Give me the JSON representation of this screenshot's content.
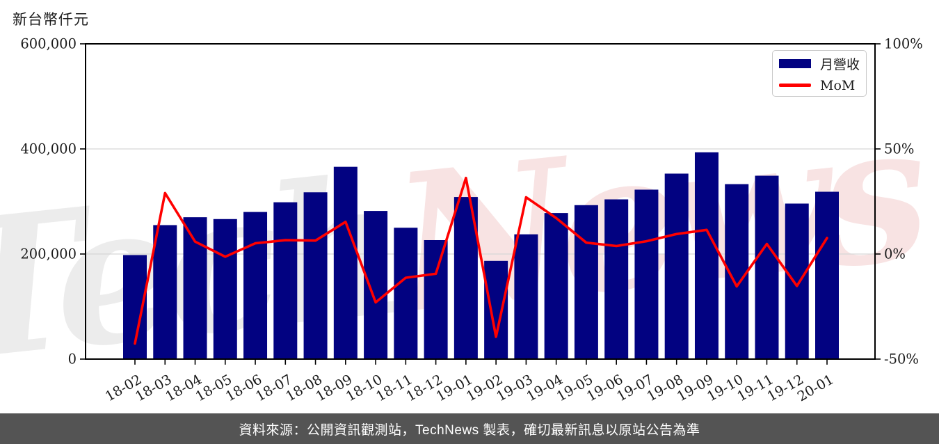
{
  "title": {
    "text": "新台幣仟元"
  },
  "legend": {
    "items": [
      {
        "label": "月營收",
        "type": "bar",
        "color": "#020281"
      },
      {
        "label": "MoM",
        "type": "line",
        "color": "#ff0000"
      }
    ]
  },
  "watermark": {
    "parts": [
      {
        "text": "Tech",
        "color": "#ececec"
      },
      {
        "text": "News",
        "color": "#f8e3e3"
      }
    ]
  },
  "footer": {
    "text": "資料來源：公開資訊觀測站，TechNews 製表，確切最新訊息以原站公告為準",
    "background": "#545454",
    "text_color": "#ffffff"
  },
  "chart_data": {
    "type": "bar",
    "title": "新台幣仟元",
    "categories": [
      "18-02",
      "18-03",
      "18-04",
      "18-05",
      "18-06",
      "18-07",
      "18-08",
      "18-09",
      "18-10",
      "18-11",
      "18-12",
      "19-01",
      "19-02",
      "19-03",
      "19-04",
      "19-05",
      "19-06",
      "19-07",
      "19-08",
      "19-09",
      "19-10",
      "19-11",
      "19-12",
      "20-01"
    ],
    "series": [
      {
        "name": "月營收",
        "type": "bar",
        "axis": "left",
        "color": "#020281",
        "values": [
          198000,
          255000,
          270000,
          266500,
          280000,
          298500,
          317500,
          366000,
          282000,
          250000,
          226500,
          308500,
          187000,
          237500,
          278000,
          293000,
          304000,
          322500,
          353000,
          393500,
          333000,
          349000,
          296000,
          318500
        ]
      },
      {
        "name": "MoM",
        "type": "line",
        "axis": "right",
        "color": "#ff0000",
        "unit": "%",
        "values": [
          -42.6,
          29.0,
          5.9,
          -1.3,
          5.1,
          6.6,
          6.4,
          15.3,
          -23.0,
          -11.3,
          -9.4,
          36.2,
          -39.4,
          27.0,
          17.1,
          5.4,
          3.8,
          6.1,
          9.5,
          11.5,
          -15.4,
          4.8,
          -15.2,
          7.6
        ]
      }
    ],
    "left_axis": {
      "title": "新台幣仟元",
      "min": 0,
      "max": 600000,
      "ticks": [
        0,
        200000,
        400000,
        600000
      ],
      "tick_labels": [
        "0",
        "200,000",
        "400,000",
        "600,000"
      ]
    },
    "right_axis": {
      "title": "",
      "min": -50,
      "max": 100,
      "ticks": [
        -50,
        0,
        50,
        100
      ],
      "tick_labels": [
        "-50%",
        "0%",
        "50%",
        "100%"
      ]
    },
    "grid": {
      "horizontal_values": [
        200000,
        400000
      ],
      "color": "#d6d6d6"
    },
    "legend_position": "upper right",
    "x_tick_rotation_deg": -30
  }
}
